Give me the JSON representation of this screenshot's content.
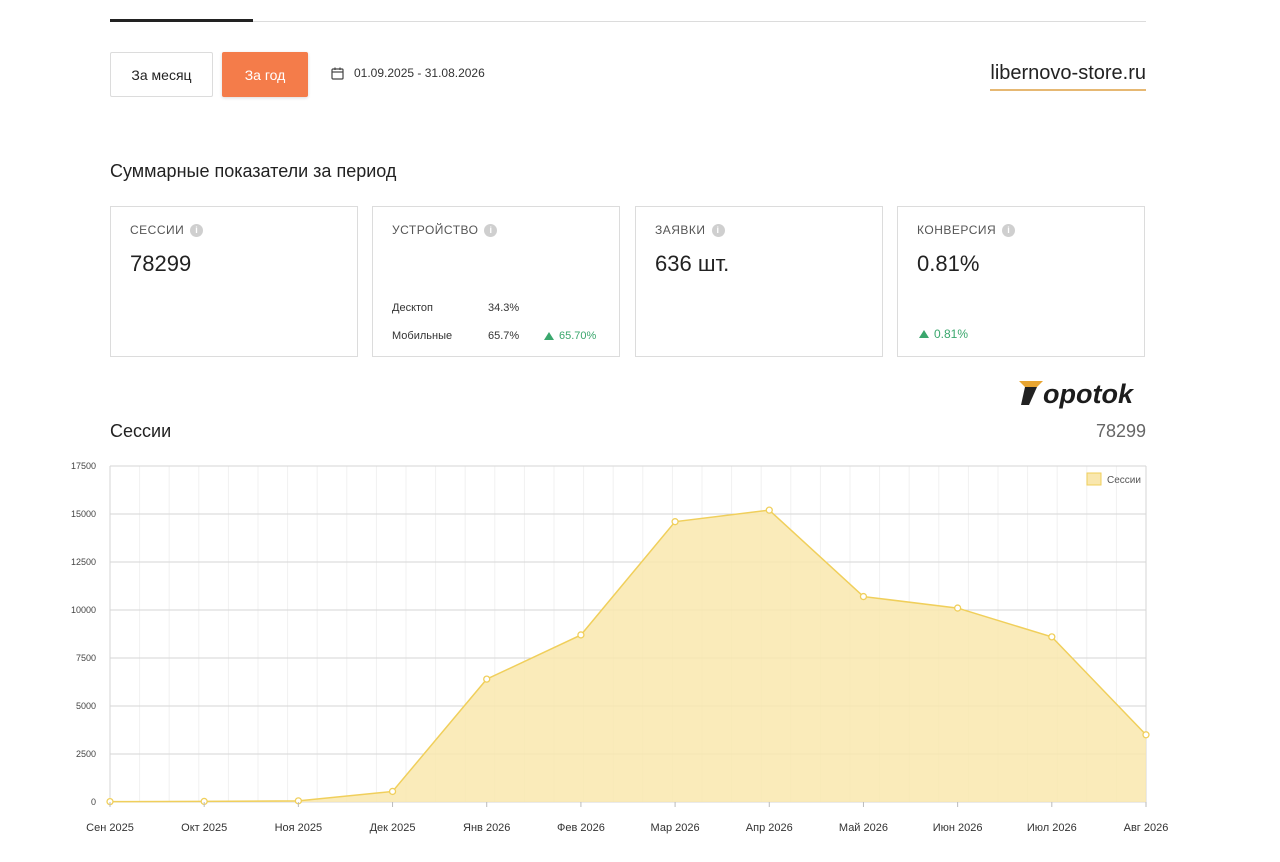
{
  "toolbar": {
    "month_label": "За месяц",
    "year_label": "За год",
    "date_range": "01.09.2025 - 31.08.2026",
    "site": "libernovo-store.ru",
    "calendar_icon": "calendar-icon"
  },
  "summary": {
    "title": "Суммарные показатели за период",
    "cards": {
      "sessions": {
        "label": "СЕССИИ",
        "value": "78299"
      },
      "device": {
        "label": "УСТРОЙСТВО",
        "rows": [
          {
            "name": "Десктоп",
            "value": "34.3%",
            "delta": ""
          },
          {
            "name": "Мобильные",
            "value": "65.7%",
            "delta": "65.70%"
          }
        ]
      },
      "requests": {
        "label": "ЗАЯВКИ",
        "value": "636 шт."
      },
      "conversion": {
        "label": "КОНВЕРСИЯ",
        "value": "0.81%",
        "delta": "0.81%"
      }
    }
  },
  "logo": {
    "text": "Yopotok"
  },
  "sessions_chart": {
    "title": "Сессии",
    "total": "78299"
  },
  "colors": {
    "accent": "#f47c4a",
    "area_fill": "#f9e7ae",
    "area_stroke": "#f0cf5b",
    "positive": "#3aa76d"
  },
  "chart_data": {
    "type": "area",
    "categories": [
      "Сен 2025",
      "Окт 2025",
      "Ноя 2025",
      "Дек 2025",
      "Янв 2026",
      "Фев 2026",
      "Мар 2026",
      "Апр 2026",
      "Май 2026",
      "Июн 2026",
      "Июл 2026",
      "Авг 2026"
    ],
    "series": [
      {
        "name": "Сессии",
        "values": [
          20,
          30,
          60,
          550,
          6400,
          8700,
          14600,
          15200,
          10700,
          10100,
          8600,
          3500
        ]
      }
    ],
    "yticks": [
      "0",
      "2500",
      "5000",
      "7500",
      "10000",
      "12500",
      "15000",
      "17500"
    ],
    "ylim": [
      0,
      17500
    ],
    "grid": true,
    "legend_position": "top-right"
  }
}
